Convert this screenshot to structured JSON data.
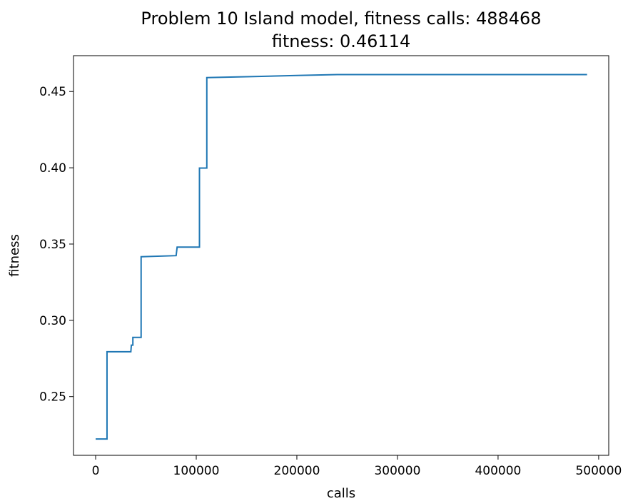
{
  "chart_data": {
    "type": "line",
    "title": "Problem 10 Island model, fitness calls: 488468",
    "subtitle": "fitness: 0.46114",
    "xlabel": "calls",
    "ylabel": "fitness",
    "xlim": [
      -22000,
      510000
    ],
    "ylim": [
      0.2115,
      0.4735
    ],
    "xticks": [
      0,
      100000,
      200000,
      300000,
      400000,
      500000
    ],
    "xtick_labels": [
      "0",
      "100000",
      "200000",
      "300000",
      "400000",
      "500000"
    ],
    "yticks": [
      0.25,
      0.3,
      0.35,
      0.4,
      0.45
    ],
    "ytick_labels": [
      "0.25",
      "0.30",
      "0.35",
      "0.40",
      "0.45"
    ],
    "grid": false,
    "series": [
      {
        "color": "#1f77b4",
        "step": true,
        "points": [
          [
            0,
            0.2222
          ],
          [
            11300,
            0.2222
          ],
          [
            11300,
            0.2794
          ],
          [
            35000,
            0.2794
          ],
          [
            35500,
            0.2837
          ],
          [
            37000,
            0.2837
          ],
          [
            37000,
            0.2888
          ],
          [
            45200,
            0.2888
          ],
          [
            45200,
            0.3417
          ],
          [
            80000,
            0.3424
          ],
          [
            81000,
            0.348
          ],
          [
            103200,
            0.348
          ],
          [
            103200,
            0.3998
          ],
          [
            110500,
            0.3998
          ],
          [
            110500,
            0.4591
          ],
          [
            150000,
            0.4597
          ],
          [
            200000,
            0.4605
          ],
          [
            240000,
            0.4611
          ],
          [
            488468,
            0.4611
          ]
        ]
      }
    ]
  }
}
